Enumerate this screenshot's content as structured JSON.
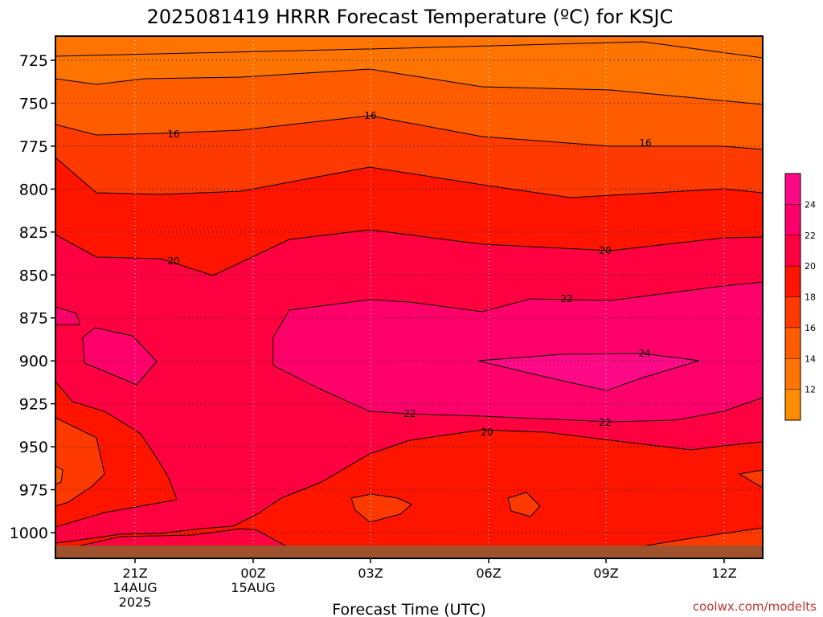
{
  "chart_data": {
    "type": "heatmap",
    "title": "2025081419 HRRR Forecast Temperature (ºC) for KSJC",
    "xlabel": "Forecast Time (UTC)",
    "ylabel": "",
    "y_ticks": [
      725,
      750,
      775,
      800,
      825,
      850,
      875,
      900,
      925,
      950,
      975,
      1000
    ],
    "x_ticks": [
      {
        "label": "21Z",
        "sub": [
          "14AUG",
          "2025"
        ]
      },
      {
        "label": "00Z",
        "sub": [
          "15AUG"
        ]
      },
      {
        "label": "03Z",
        "sub": []
      },
      {
        "label": "06Z",
        "sub": []
      },
      {
        "label": "09Z",
        "sub": []
      },
      {
        "label": "12Z",
        "sub": []
      }
    ],
    "contour_levels": [
      12,
      14,
      16,
      18,
      20,
      22,
      24
    ],
    "contour_labels": [
      "16",
      "16",
      "16",
      "20",
      "20",
      "22",
      "24",
      "22",
      "22",
      "20"
    ],
    "colorbar": {
      "ticks": [
        "12",
        "14",
        "16",
        "18",
        "20",
        "22",
        "24"
      ],
      "colors": [
        "#ff8c00",
        "#ff7400",
        "#ff5c00",
        "#ff3a00",
        "#ff1400",
        "#ff0040",
        "#ff006a",
        "#ff0a86"
      ]
    },
    "surface_color": "#a0522d",
    "credit": "coolwx.com/modelts",
    "grid": true
  }
}
